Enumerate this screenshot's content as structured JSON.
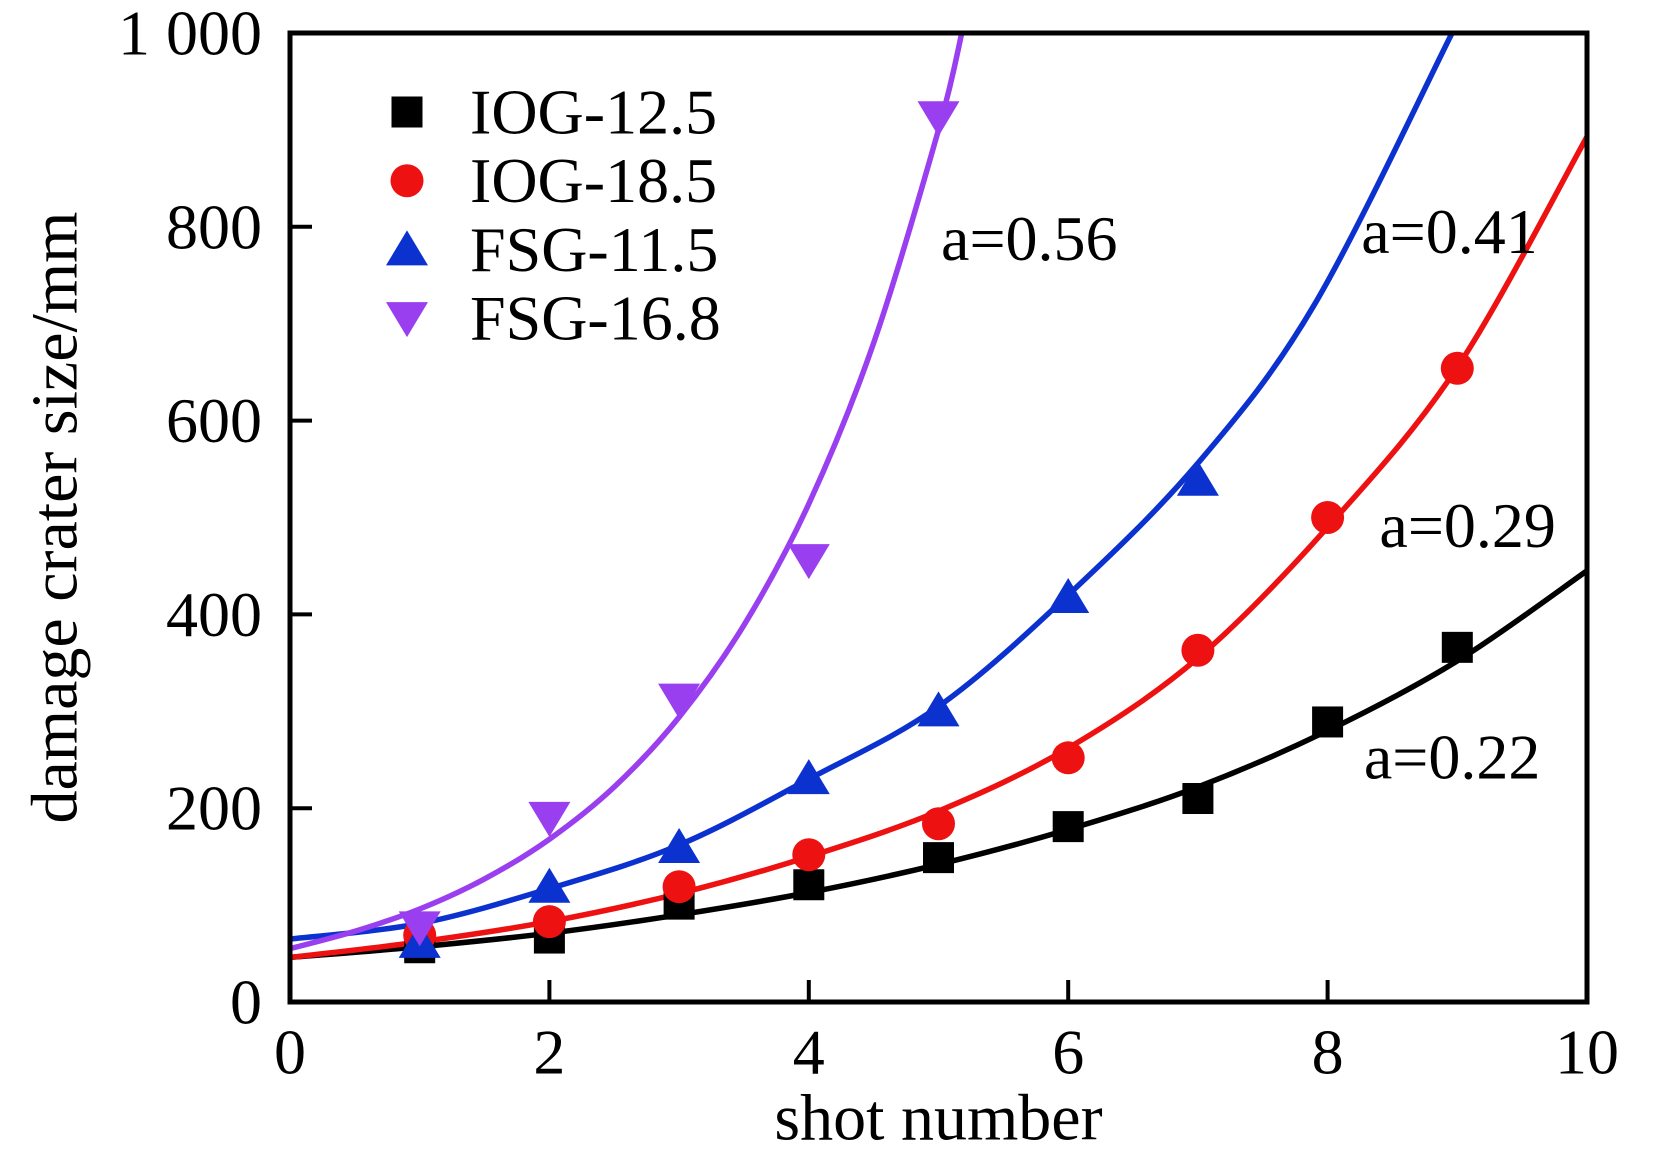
{
  "figure": {
    "background": "#ffffff"
  },
  "chart_data": {
    "type": "scatter",
    "title": "",
    "xlabel": "shot number",
    "ylabel": "damage crater size/mm",
    "xlim": [
      0,
      10
    ],
    "ylim": [
      0,
      1000
    ],
    "xticks": {
      "values": [
        0,
        2,
        4,
        6,
        8,
        10
      ],
      "labels": [
        "0",
        "2",
        "4",
        "6",
        "8",
        "10"
      ]
    },
    "yticks": {
      "values": [
        0,
        200,
        400,
        600,
        800,
        1000
      ],
      "labels": [
        "0",
        "200",
        "400",
        "600",
        "800",
        "1 000"
      ]
    },
    "grid": false,
    "legend": {
      "position": "upper-left-inside"
    },
    "series": [
      {
        "name": "IOG-12.5",
        "color": "#000000",
        "marker": "square",
        "x": [
          1,
          2,
          3,
          4,
          5,
          6,
          7,
          8,
          9
        ],
        "y": [
          56,
          66,
          101,
          121,
          149,
          181,
          210,
          289,
          366
        ],
        "fit_annotation": "a=0.22",
        "fit_curve": [
          [
            0,
            46
          ],
          [
            1,
            57
          ],
          [
            2,
            71
          ],
          [
            3,
            90
          ],
          [
            4,
            113
          ],
          [
            5,
            142
          ],
          [
            6,
            178
          ],
          [
            7,
            222
          ],
          [
            8,
            280
          ],
          [
            9,
            352
          ],
          [
            10,
            445
          ]
        ]
      },
      {
        "name": "IOG-18.5",
        "color": "#ee1111",
        "marker": "circle",
        "x": [
          1,
          2,
          3,
          4,
          5,
          6,
          7,
          8,
          9
        ],
        "y": [
          69,
          83,
          119,
          152,
          184,
          252,
          363,
          500,
          654
        ],
        "fit_annotation": "a=0.29",
        "fit_curve": [
          [
            0,
            46
          ],
          [
            1,
            62
          ],
          [
            2,
            83
          ],
          [
            3,
            112
          ],
          [
            4,
            150
          ],
          [
            5,
            197
          ],
          [
            6,
            262
          ],
          [
            7,
            355
          ],
          [
            8,
            490
          ],
          [
            9,
            655
          ],
          [
            10,
            893
          ]
        ]
      },
      {
        "name": "FSG-11.5",
        "color": "#0b31cf",
        "marker": "triangle-up",
        "x": [
          1,
          2,
          3,
          4,
          5,
          6,
          7
        ],
        "y": [
          62,
          119,
          160,
          231,
          301,
          418,
          539
        ],
        "fit_annotation": "a=0.41",
        "fit_curve": [
          [
            0,
            65
          ],
          [
            1,
            81
          ],
          [
            2,
            117
          ],
          [
            3,
            162
          ],
          [
            4,
            230
          ],
          [
            5,
            305
          ],
          [
            6,
            420
          ],
          [
            7,
            556
          ],
          [
            7.9,
            720
          ],
          [
            8.96,
            1000
          ]
        ]
      },
      {
        "name": "FSG-16.8",
        "color": "#9a3ff0",
        "marker": "triangle-down",
        "x": [
          1,
          2,
          3,
          4,
          5
        ],
        "y": [
          77,
          190,
          312,
          456,
          913
        ],
        "fit_annotation": "a=0.56",
        "fit_curve": [
          [
            0,
            55
          ],
          [
            0.5,
            73
          ],
          [
            1,
            96
          ],
          [
            1.5,
            127
          ],
          [
            2,
            168
          ],
          [
            2.5,
            222
          ],
          [
            3,
            294
          ],
          [
            3.5,
            389
          ],
          [
            4,
            514
          ],
          [
            4.5,
            680
          ],
          [
            5,
            900
          ],
          [
            5.18,
            1000
          ]
        ]
      }
    ],
    "annotations": [
      {
        "text": "a=0.56",
        "x": 5.7,
        "y": 788
      },
      {
        "text": "a=0.41",
        "x": 8.94,
        "y": 795
      },
      {
        "text": "a=0.29",
        "x": 9.08,
        "y": 492
      },
      {
        "text": "a=0.22",
        "x": 8.96,
        "y": 253
      }
    ]
  }
}
